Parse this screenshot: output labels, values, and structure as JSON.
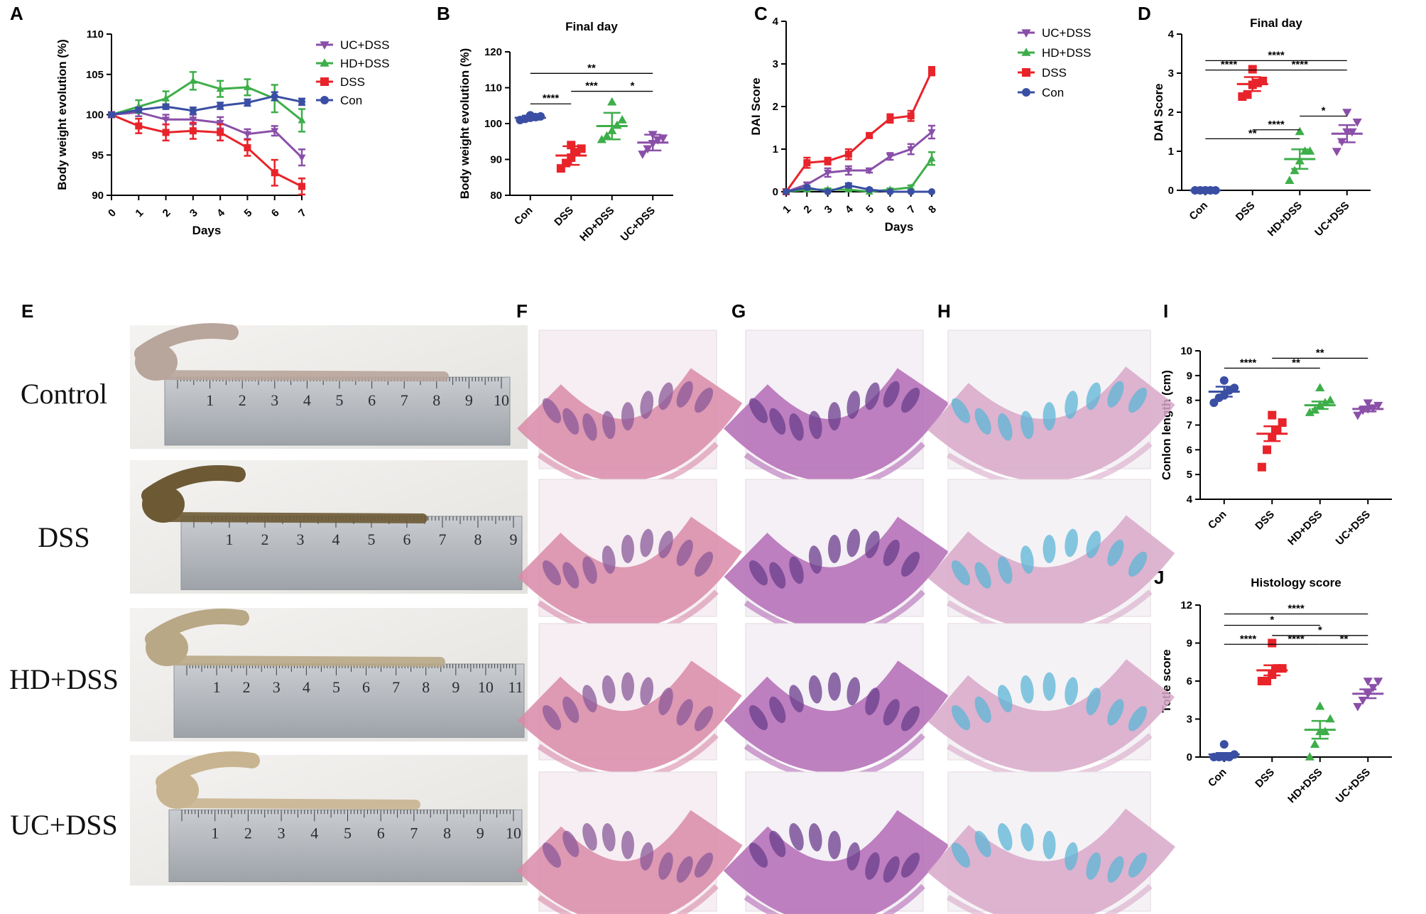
{
  "panel_letters": [
    "A",
    "B",
    "C",
    "D",
    "E",
    "F",
    "G",
    "H",
    "I",
    "J"
  ],
  "photo_labels": [
    "Control",
    "DSS",
    "HD+DSS",
    "UC+DSS"
  ],
  "group_colors": {
    "UC+DSS": "#8a4fa8",
    "HD+DSS": "#3dae49",
    "DSS": "#e8232a",
    "Con": "#3a4fa3"
  },
  "chart_data": [
    {
      "id": "A",
      "type": "line",
      "xlabel": "Days",
      "ylabel": "Body weight evolution (%)",
      "x": [
        0,
        1,
        2,
        3,
        4,
        5,
        6,
        7
      ],
      "ylim": [
        90,
        110
      ],
      "yticks": [
        90,
        95,
        100,
        105,
        110
      ],
      "legend_position": "top-right",
      "series": [
        {
          "name": "UC+DSS",
          "marker": "tri-down",
          "color": "#8a4fa8",
          "values": [
            100,
            100.3,
            99.4,
            99.4,
            99.0,
            97.6,
            98.0,
            94.7
          ],
          "err": [
            0.3,
            0.5,
            0.6,
            0.6,
            0.7,
            0.6,
            0.6,
            1.0
          ]
        },
        {
          "name": "HD+DSS",
          "marker": "tri-up",
          "color": "#3dae49",
          "values": [
            100,
            101,
            102,
            104.2,
            103.2,
            103.4,
            102,
            99.3
          ],
          "err": [
            0.3,
            0.8,
            0.9,
            1.1,
            1.0,
            1.0,
            1.7,
            1.4
          ]
        },
        {
          "name": "DSS",
          "marker": "square",
          "color": "#e8232a",
          "values": [
            100,
            98.6,
            97.8,
            98,
            97.8,
            95.9,
            92.8,
            91.1
          ],
          "err": [
            0.3,
            0.9,
            1.0,
            1.0,
            1.0,
            1.0,
            1.6,
            1.0
          ]
        },
        {
          "name": "Con",
          "marker": "circle",
          "color": "#3a4fa3",
          "values": [
            100,
            100.6,
            101,
            100.5,
            101.1,
            101.5,
            102.3,
            101.6
          ],
          "err": [
            0.3,
            0.3,
            0.3,
            0.4,
            0.4,
            0.4,
            0.5,
            0.4
          ]
        }
      ]
    },
    {
      "id": "B",
      "type": "scatter",
      "title": "Final day",
      "ylabel": "Body weight evolution (%)",
      "categories": [
        "Con",
        "DSS",
        "HD+DSS",
        "UC+DSS"
      ],
      "ylim": [
        80,
        120
      ],
      "yticks": [
        80,
        90,
        100,
        110,
        120
      ],
      "groups": [
        {
          "name": "Con",
          "marker": "circle",
          "color": "#3a4fa3",
          "mean": 101.6,
          "sd": 0.6,
          "points": [
            101.0,
            101.3,
            101.6,
            101.8,
            102.0,
            102.3
          ]
        },
        {
          "name": "DSS",
          "marker": "square",
          "color": "#e8232a",
          "mean": 91.1,
          "sd": 2.6,
          "points": [
            87.5,
            89.0,
            90.5,
            92.0,
            93.0,
            94.0
          ]
        },
        {
          "name": "HD+DSS",
          "marker": "tri-up",
          "color": "#3dae49",
          "mean": 99.3,
          "sd": 3.7,
          "points": [
            95.5,
            96.5,
            98.0,
            99.5,
            101.0,
            106.0
          ]
        },
        {
          "name": "UC+DSS",
          "marker": "tri-down",
          "color": "#8a4fa8",
          "mean": 94.7,
          "sd": 2.2,
          "points": [
            91.5,
            93.0,
            94.5,
            95.5,
            96.0,
            97.0
          ]
        }
      ],
      "significance": [
        {
          "from": 0,
          "to": 3,
          "label": "**",
          "y": 114
        },
        {
          "from": 0,
          "to": 1,
          "label": "****",
          "y": 105.5
        },
        {
          "from": 1,
          "to": 2,
          "label": "***",
          "y": 109
        },
        {
          "from": 2,
          "to": 3,
          "label": "*",
          "y": 109
        }
      ]
    },
    {
      "id": "C",
      "type": "line",
      "xlabel": "Days",
      "ylabel": "DAI Score",
      "x": [
        1,
        2,
        3,
        4,
        5,
        6,
        7,
        8
      ],
      "ylim": [
        0,
        4
      ],
      "yticks": [
        0,
        1,
        2,
        3,
        4
      ],
      "legend_position": "top-right",
      "series": [
        {
          "name": "UC+DSS",
          "marker": "tri-down",
          "color": "#8a4fa8",
          "values": [
            0,
            0.17,
            0.45,
            0.5,
            0.5,
            0.83,
            1.0,
            1.4
          ],
          "err": [
            0,
            0.05,
            0.1,
            0.1,
            0.05,
            0.08,
            0.12,
            0.15
          ]
        },
        {
          "name": "HD+DSS",
          "marker": "tri-up",
          "color": "#3dae49",
          "values": [
            0,
            0.05,
            0.05,
            0.05,
            0,
            0.05,
            0.1,
            0.78
          ],
          "err": [
            0,
            0.03,
            0.03,
            0.03,
            0,
            0.03,
            0.05,
            0.15
          ]
        },
        {
          "name": "DSS",
          "marker": "square",
          "color": "#e8232a",
          "values": [
            0,
            0.68,
            0.72,
            0.88,
            1.32,
            1.72,
            1.78,
            2.83
          ],
          "err": [
            0,
            0.12,
            0.08,
            0.12,
            0.05,
            0.1,
            0.12,
            0.1
          ]
        },
        {
          "name": "Con",
          "marker": "circle",
          "color": "#3a4fa3",
          "values": [
            0,
            0.1,
            0,
            0.15,
            0.05,
            0,
            0,
            0
          ],
          "err": [
            0,
            0.04,
            0,
            0.05,
            0.03,
            0,
            0,
            0
          ]
        }
      ]
    },
    {
      "id": "D",
      "type": "scatter",
      "title": "Final day",
      "ylabel": "DAI Score",
      "categories": [
        "Con",
        "DSS",
        "HD+DSS",
        "UC+DSS"
      ],
      "ylim": [
        0,
        4
      ],
      "yticks": [
        0,
        1,
        2,
        3,
        4
      ],
      "groups": [
        {
          "name": "Con",
          "marker": "circle",
          "color": "#3a4fa3",
          "mean": 0,
          "sd": 0,
          "points": [
            0,
            0,
            0,
            0,
            0,
            0
          ]
        },
        {
          "name": "DSS",
          "marker": "square",
          "color": "#e8232a",
          "mean": 2.72,
          "sd": 0.18,
          "points": [
            2.4,
            2.45,
            2.7,
            2.75,
            2.8,
            3.1
          ]
        },
        {
          "name": "HD+DSS",
          "marker": "tri-up",
          "color": "#3dae49",
          "mean": 0.8,
          "sd": 0.25,
          "points": [
            0.25,
            0.5,
            0.75,
            1.0,
            1.0,
            1.5
          ]
        },
        {
          "name": "UC+DSS",
          "marker": "tri-down",
          "color": "#8a4fa8",
          "mean": 1.45,
          "sd": 0.22,
          "points": [
            1.0,
            1.25,
            1.5,
            1.5,
            1.75,
            2.0
          ]
        }
      ],
      "significance": [
        {
          "from": 0,
          "to": 3,
          "label": "****",
          "y": 3.32
        },
        {
          "from": 0,
          "to": 1,
          "label": "****",
          "y": 3.08
        },
        {
          "from": 1,
          "to": 3,
          "label": "****",
          "y": 3.08
        },
        {
          "from": 1,
          "to": 2,
          "label": "****",
          "y": 1.55
        },
        {
          "from": 2,
          "to": 3,
          "label": "*",
          "y": 1.9
        },
        {
          "from": 0,
          "to": 2,
          "label": "**",
          "y": 1.32
        }
      ]
    },
    {
      "id": "I",
      "type": "scatter",
      "ylabel": "Conlon length (cm)",
      "categories": [
        "Con",
        "DSS",
        "HD+DSS",
        "UC+DSS"
      ],
      "ylim": [
        4,
        10
      ],
      "yticks": [
        4,
        5,
        6,
        7,
        8,
        9,
        10
      ],
      "groups": [
        {
          "name": "Con",
          "marker": "circle",
          "color": "#3a4fa3",
          "mean": 8.35,
          "sd": 0.2,
          "points": [
            7.9,
            8.1,
            8.2,
            8.4,
            8.5,
            8.8
          ]
        },
        {
          "name": "DSS",
          "marker": "square",
          "color": "#e8232a",
          "mean": 6.65,
          "sd": 0.3,
          "points": [
            5.3,
            6.0,
            6.5,
            6.8,
            7.1,
            7.4
          ]
        },
        {
          "name": "HD+DSS",
          "marker": "tri-up",
          "color": "#3dae49",
          "mean": 7.8,
          "sd": 0.15,
          "points": [
            7.5,
            7.6,
            7.8,
            7.9,
            8.0,
            8.5
          ]
        },
        {
          "name": "UC+DSS",
          "marker": "tri-down",
          "color": "#8a4fa8",
          "mean": 7.65,
          "sd": 0.1,
          "points": [
            7.4,
            7.6,
            7.65,
            7.7,
            7.8,
            7.9
          ]
        }
      ],
      "significance": [
        {
          "from": 0,
          "to": 1,
          "label": "****",
          "y": 9.3
        },
        {
          "from": 1,
          "to": 3,
          "label": "**",
          "y": 9.7
        },
        {
          "from": 1,
          "to": 2,
          "label": "**",
          "y": 9.3
        }
      ]
    },
    {
      "id": "J",
      "type": "scatter",
      "title": "Histology score",
      "ylabel": "Totle score",
      "categories": [
        "Con",
        "DSS",
        "HD+DSS",
        "UC+DSS"
      ],
      "ylim": [
        0,
        12
      ],
      "yticks": [
        0,
        3,
        6,
        9,
        12
      ],
      "groups": [
        {
          "name": "Con",
          "marker": "circle",
          "color": "#3a4fa3",
          "mean": 0.2,
          "sd": 0.12,
          "points": [
            0,
            0,
            0,
            0,
            0.2,
            1.0
          ]
        },
        {
          "name": "DSS",
          "marker": "square",
          "color": "#e8232a",
          "mean": 6.85,
          "sd": 0.4,
          "points": [
            6.0,
            6.0,
            6.5,
            7.0,
            7.0,
            9.0
          ]
        },
        {
          "name": "HD+DSS",
          "marker": "tri-up",
          "color": "#3dae49",
          "mean": 2.15,
          "sd": 0.7,
          "points": [
            0,
            1.0,
            2.0,
            2.0,
            3.0,
            4.0
          ]
        },
        {
          "name": "UC+DSS",
          "marker": "tri-down",
          "color": "#8a4fa8",
          "mean": 5.0,
          "sd": 0.35,
          "points": [
            4.0,
            4.5,
            5.0,
            5.5,
            6.0,
            6.0
          ]
        }
      ],
      "significance": [
        {
          "from": 0,
          "to": 3,
          "label": "****",
          "y": 11.3
        },
        {
          "from": 0,
          "to": 2,
          "label": "*",
          "y": 10.4
        },
        {
          "from": 1,
          "to": 3,
          "label": "*",
          "y": 9.6
        },
        {
          "from": 0,
          "to": 1,
          "label": "****",
          "y": 8.9
        },
        {
          "from": 1,
          "to": 2,
          "label": "****",
          "y": 8.9
        },
        {
          "from": 2,
          "to": 3,
          "label": "**",
          "y": 8.9
        }
      ]
    }
  ]
}
